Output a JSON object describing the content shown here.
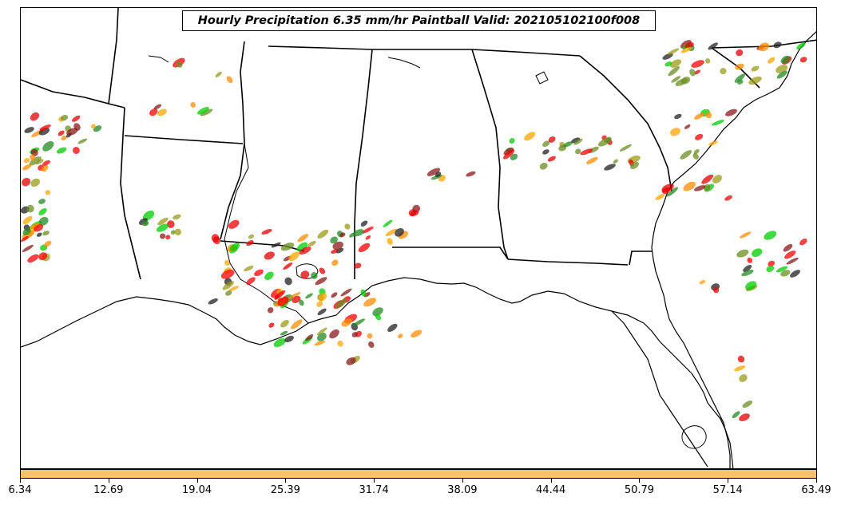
{
  "title": "Hourly Precipitation 6.35 mm/hr Paintball Valid: 202105102100f008",
  "colorbar": {
    "color": "#ffc266",
    "ticks": [
      "6.34",
      "12.69",
      "19.04",
      "25.39",
      "31.74",
      "38.09",
      "44.44",
      "50.79",
      "57.14",
      "63.49"
    ]
  },
  "member_colors": [
    "#ff0000",
    "#e60000",
    "#8b1a1a",
    "#6b8e23",
    "#9b9b1a",
    "#ff8c00",
    "#ffa500",
    "#00cc00",
    "#228b22",
    "#222222"
  ]
}
